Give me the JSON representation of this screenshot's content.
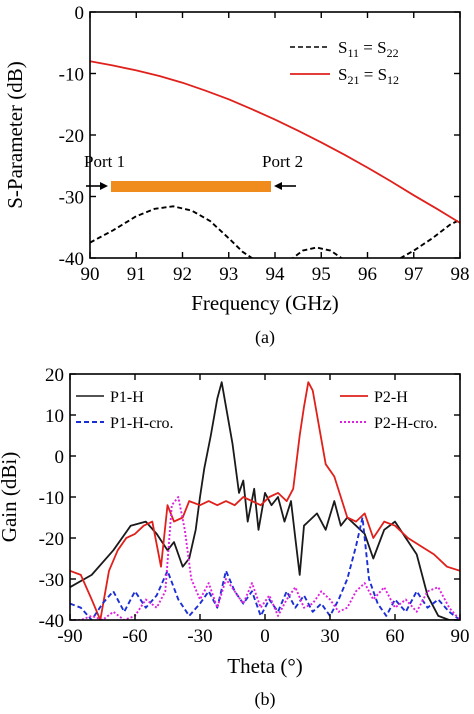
{
  "figure": {
    "caption_a": "(a)",
    "caption_b": "(b)"
  },
  "chart_data": [
    {
      "type": "line",
      "xlabel": "Frequency (GHz)",
      "ylabel": "S-Parameter (dB)",
      "xlim": [
        90,
        98
      ],
      "ylim": [
        -40,
        0
      ],
      "xticks": [
        90,
        91,
        92,
        93,
        94,
        95,
        96,
        97,
        98
      ],
      "yticks": [
        0,
        -10,
        -20,
        -30,
        -40
      ],
      "legend_position": "top-right",
      "inset": {
        "port1_label": "Port 1",
        "port2_label": "Port 2",
        "line_color": "#F08C1E"
      },
      "series": [
        {
          "name": "S11 = S22",
          "legend": {
            "a": "S",
            "a_sub": "11",
            "eq": " = ",
            "b": "S",
            "b_sub": "22"
          },
          "color": "#000000",
          "dash": "dashed",
          "x": [
            90.0,
            90.5,
            91.0,
            91.4,
            91.8,
            92.2,
            92.6,
            93.0,
            93.3,
            93.6,
            93.8,
            94.0,
            94.3,
            94.6,
            94.9,
            95.2,
            95.4,
            95.6,
            95.8,
            96.0,
            96.3,
            96.6,
            97.0,
            97.4,
            97.8,
            98.0
          ],
          "y": [
            -37.5,
            -35.5,
            -33.2,
            -32.0,
            -31.6,
            -32.3,
            -34.0,
            -36.8,
            -39.0,
            -40.5,
            -41.5,
            -42.0,
            -40.5,
            -38.8,
            -38.3,
            -38.8,
            -39.8,
            -41.0,
            -42.5,
            -43.0,
            -42.0,
            -40.5,
            -38.8,
            -36.8,
            -34.5,
            -33.8
          ]
        },
        {
          "name": "S21 = S12",
          "legend": {
            "a": "S",
            "a_sub": "21",
            "eq": " = ",
            "b": "S",
            "b_sub": "12"
          },
          "color": "#E0201B",
          "dash": "solid",
          "x": [
            90,
            90.5,
            91,
            91.5,
            92,
            92.5,
            93,
            93.5,
            94,
            94.5,
            95,
            95.5,
            96,
            96.5,
            97,
            97.5,
            98
          ],
          "y": [
            -8.0,
            -8.7,
            -9.5,
            -10.4,
            -11.5,
            -12.8,
            -14.2,
            -15.8,
            -17.5,
            -19.3,
            -21.2,
            -23.2,
            -25.3,
            -27.5,
            -29.8,
            -32.0,
            -34.3
          ]
        }
      ]
    },
    {
      "type": "line",
      "xlabel": "Theta (°)",
      "ylabel": "Gain (dBi)",
      "xlim": [
        -90,
        90
      ],
      "ylim": [
        -40,
        20
      ],
      "xticks": [
        -90,
        -60,
        -30,
        0,
        30,
        60,
        90
      ],
      "yticks": [
        20,
        10,
        0,
        -10,
        -20,
        -30,
        -40
      ],
      "legend_position": "top",
      "series": [
        {
          "name": "P1-H",
          "color": "#1A1A1A",
          "dash": "solid",
          "x": [
            -90,
            -80,
            -70,
            -62,
            -55,
            -50,
            -45,
            -42,
            -38,
            -35,
            -32,
            -30,
            -28,
            -25,
            -22,
            -20,
            -18,
            -15,
            -12,
            -10,
            -8,
            -5,
            -3,
            0,
            3,
            6,
            9,
            12,
            14,
            16,
            18,
            20,
            24,
            28,
            32,
            35,
            38,
            42,
            46,
            50,
            55,
            60,
            65,
            70,
            75,
            80,
            85,
            90
          ],
          "y": [
            -32,
            -29,
            -23,
            -17,
            -16,
            -19,
            -23,
            -21,
            -27,
            -25,
            -18,
            -10,
            -3,
            5,
            14,
            18,
            12,
            3,
            -9,
            -6,
            -16,
            -8,
            -18,
            -9,
            -12,
            -10,
            -16,
            -11,
            -20,
            -29,
            -17,
            -16,
            -14,
            -18,
            -11,
            -17,
            -15,
            -17,
            -19,
            -25,
            -18,
            -16,
            -20,
            -24,
            -34,
            -39,
            -40,
            -40
          ]
        },
        {
          "name": "P2-H",
          "color": "#E0201B",
          "dash": "solid",
          "x": [
            -90,
            -85,
            -80,
            -76,
            -72,
            -68,
            -64,
            -60,
            -56,
            -52,
            -48,
            -45,
            -42,
            -38,
            -35,
            -30,
            -26,
            -22,
            -18,
            -14,
            -10,
            -6,
            -2,
            2,
            6,
            10,
            13,
            16,
            18,
            20,
            22,
            25,
            28,
            32,
            35,
            38,
            42,
            46,
            50,
            55,
            60,
            66,
            72,
            78,
            84,
            90
          ],
          "y": [
            -28,
            -29,
            -35,
            -40,
            -28,
            -23,
            -20,
            -19,
            -17,
            -16,
            -27,
            -12,
            -16,
            -15,
            -11,
            -12,
            -11,
            -12,
            -11,
            -12,
            -10,
            -11,
            -12,
            -10,
            -9,
            -11,
            -8,
            5,
            12,
            18,
            16,
            7,
            -2,
            -5,
            -10,
            -15,
            -16,
            -14,
            -20,
            -16,
            -17,
            -20,
            -22,
            -24,
            -27,
            -28
          ]
        },
        {
          "name": "P1-H-cro.",
          "color": "#1C2FD6",
          "dash": "dashed",
          "x": [
            -90,
            -85,
            -80,
            -75,
            -70,
            -65,
            -60,
            -55,
            -50,
            -45,
            -40,
            -35,
            -30,
            -26,
            -22,
            -18,
            -14,
            -10,
            -6,
            -2,
            2,
            6,
            10,
            14,
            18,
            22,
            26,
            30,
            34,
            38,
            42,
            45,
            48,
            52,
            56,
            60,
            65,
            70,
            75,
            80,
            85,
            90
          ],
          "y": [
            -36,
            -37,
            -40,
            -36,
            -33,
            -38,
            -33,
            -37,
            -34,
            -28,
            -35,
            -39,
            -36,
            -33,
            -37,
            -28,
            -33,
            -36,
            -33,
            -39,
            -35,
            -38,
            -33,
            -37,
            -34,
            -38,
            -36,
            -39,
            -35,
            -30,
            -22,
            -15,
            -30,
            -36,
            -39,
            -35,
            -38,
            -33,
            -37,
            -35,
            -38,
            -40
          ]
        },
        {
          "name": "P2-H-cro.",
          "color": "#E020E0",
          "dash": "dotted",
          "x": [
            -90,
            -85,
            -80,
            -75,
            -70,
            -65,
            -60,
            -55,
            -50,
            -46,
            -43,
            -40,
            -37,
            -34,
            -30,
            -26,
            -22,
            -18,
            -14,
            -10,
            -6,
            -2,
            2,
            6,
            10,
            14,
            18,
            22,
            26,
            30,
            34,
            38,
            42,
            46,
            50,
            55,
            60,
            65,
            70,
            75,
            80,
            85,
            90
          ],
          "y": [
            -40,
            -40,
            -39,
            -40,
            -38,
            -40,
            -39,
            -35,
            -37,
            -33,
            -12,
            -10,
            -18,
            -30,
            -35,
            -31,
            -37,
            -30,
            -33,
            -36,
            -31,
            -37,
            -34,
            -39,
            -35,
            -32,
            -37,
            -36,
            -33,
            -35,
            -38,
            -37,
            -33,
            -31,
            -35,
            -32,
            -37,
            -35,
            -38,
            -33,
            -32,
            -37,
            -40
          ]
        }
      ]
    }
  ]
}
